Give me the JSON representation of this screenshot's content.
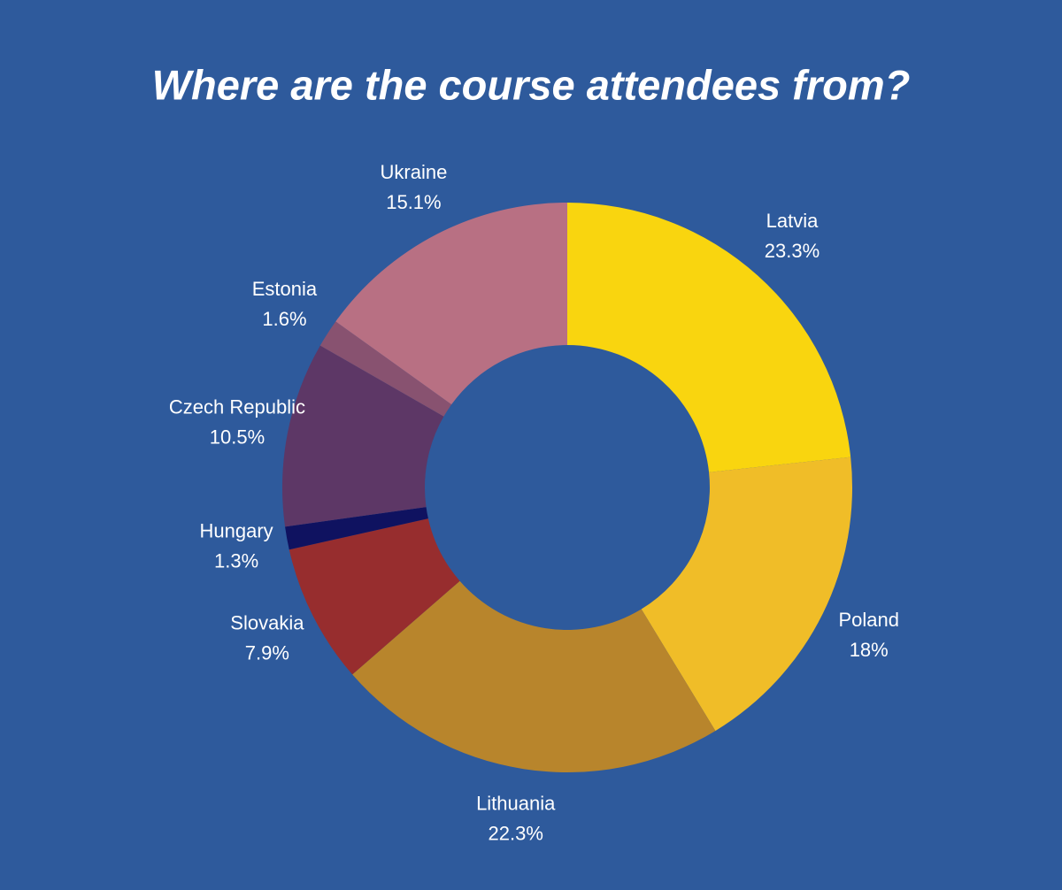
{
  "chart_data": {
    "type": "donut",
    "title": "Where are the course attendees from?",
    "categories": [
      "Latvia",
      "Poland",
      "Lithuania",
      "Slovakia",
      "Hungary",
      "Czech Republic",
      "Estonia",
      "Ukraine"
    ],
    "values": [
      23.3,
      18,
      22.3,
      7.9,
      1.3,
      10.5,
      1.6,
      15.1
    ],
    "value_labels": [
      "23.3%",
      "18%",
      "22.3%",
      "7.9%",
      "1.3%",
      "10.5%",
      "1.6%",
      "15.1%"
    ],
    "colors": [
      "#f9d50f",
      "#f0bd28",
      "#b8852c",
      "#972d2e",
      "#0f1260",
      "#5d3766",
      "#885270",
      "#b87083"
    ]
  }
}
